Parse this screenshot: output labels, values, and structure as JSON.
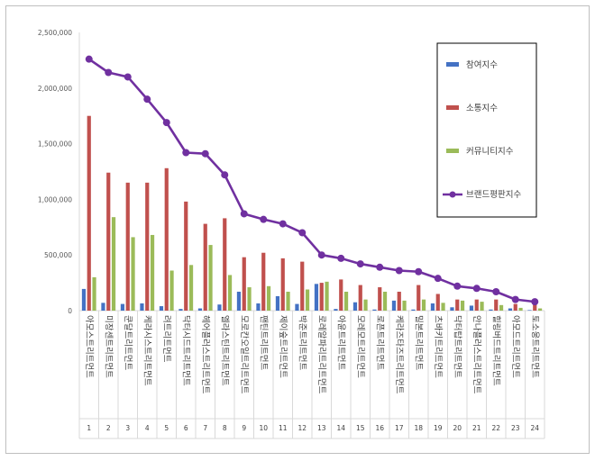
{
  "chart_data": {
    "type": "bar",
    "y_ticks": [
      "0",
      "500,000",
      "1,000,000",
      "1,500,000",
      "2,000,000",
      "2,500,000"
    ],
    "ylim": [
      0,
      2500000
    ],
    "categories": [
      "아모스트리트먼트",
      "미장센트리트먼트",
      "쿤달트리트먼트",
      "케라시스트리트먼트",
      "려트리트먼트",
      "닥터시드트리트먼트",
      "헤어플러스트리트먼트",
      "엘라스틴트리트먼트",
      "모로칸오일트리트먼트",
      "팬틴트리트먼트",
      "제이숲트리트먼트",
      "박준트리트먼트",
      "로레알파리트리트먼트",
      "아윤트리트먼트",
      "모레모트리트먼트",
      "로픈트리트먼트",
      "케라즈타즈트리트먼트",
      "밀본트리트먼트",
      "츠바키트리트먼트",
      "닥터탑트리트먼트",
      "안나플러스트리트먼트",
      "힐링버드트리트먼트",
      "아모드트리트먼트",
      "토소웅트리트먼트"
    ],
    "index_labels": [
      "1",
      "2",
      "3",
      "4",
      "5",
      "6",
      "7",
      "8",
      "9",
      "10",
      "11",
      "12",
      "13",
      "14",
      "15",
      "16",
      "17",
      "18",
      "19",
      "20",
      "21",
      "22",
      "23",
      "24"
    ],
    "series": [
      {
        "name": "참여지수",
        "kind": "bar",
        "color": "#4472c4",
        "values": [
          195000,
          70000,
          60000,
          65000,
          40000,
          15000,
          20000,
          55000,
          170000,
          65000,
          130000,
          60000,
          240000,
          15000,
          75000,
          10000,
          90000,
          10000,
          65000,
          30000,
          45000,
          10000,
          20000,
          5000
        ]
      },
      {
        "name": "소통지수",
        "kind": "bar",
        "color": "#c0504d",
        "values": [
          1750000,
          1240000,
          1150000,
          1150000,
          1280000,
          980000,
          780000,
          830000,
          480000,
          520000,
          470000,
          440000,
          250000,
          280000,
          230000,
          210000,
          170000,
          230000,
          150000,
          100000,
          100000,
          100000,
          60000,
          55000
        ]
      },
      {
        "name": "커뮤니티지수",
        "kind": "bar",
        "color": "#9bbb59",
        "values": [
          300000,
          840000,
          660000,
          680000,
          360000,
          410000,
          590000,
          320000,
          210000,
          220000,
          170000,
          190000,
          260000,
          170000,
          100000,
          170000,
          90000,
          100000,
          70000,
          90000,
          80000,
          50000,
          25000,
          20000
        ]
      },
      {
        "name": "브랜드평판지수",
        "kind": "line",
        "color": "#7030a0",
        "values": [
          2260000,
          2140000,
          2100000,
          1900000,
          1690000,
          1420000,
          1410000,
          1220000,
          870000,
          820000,
          780000,
          700000,
          500000,
          470000,
          420000,
          390000,
          360000,
          350000,
          290000,
          220000,
          200000,
          170000,
          100000,
          80000
        ]
      }
    ],
    "legend_position": "top-right",
    "grid": false
  }
}
